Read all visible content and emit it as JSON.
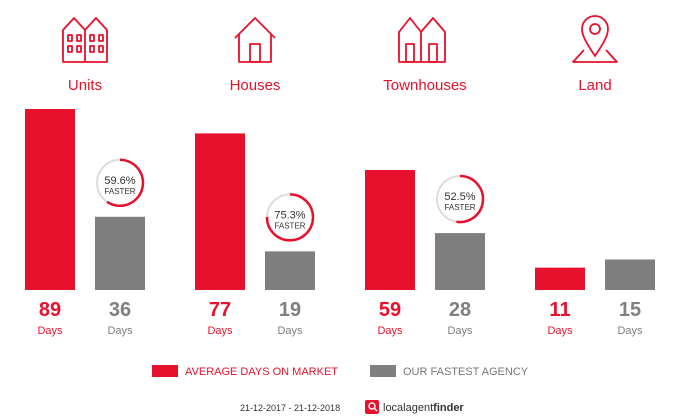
{
  "chart_data": {
    "type": "bar",
    "categories": [
      "Units",
      "Houses",
      "Townhouses",
      "Land"
    ],
    "icons": [
      "units-icon",
      "house-icon",
      "townhouses-icon",
      "land-pin-icon"
    ],
    "series": [
      {
        "name": "AVERAGE DAYS ON MARKET",
        "values": [
          89,
          77,
          59,
          11
        ],
        "color": "#e8112d"
      },
      {
        "name": "OUR FASTEST AGENCY",
        "values": [
          36,
          19,
          28,
          15
        ],
        "color": "#7f7f7f"
      }
    ],
    "unit_label": "Days",
    "faster": [
      {
        "pct": "59.6%",
        "label": "FASTER",
        "fraction": 0.596
      },
      {
        "pct": "75.3%",
        "label": "FASTER",
        "fraction": 0.753
      },
      {
        "pct": "52.5%",
        "label": "FASTER",
        "fraction": 0.525
      },
      null
    ],
    "ylim": [
      0,
      89
    ]
  },
  "footer": {
    "date_range": "21-12-2017 - 21-12-2018",
    "brand_local": "localagent",
    "brand_finder": "finder"
  },
  "colors": {
    "red": "#e8112d",
    "grey": "#7f7f7f"
  }
}
